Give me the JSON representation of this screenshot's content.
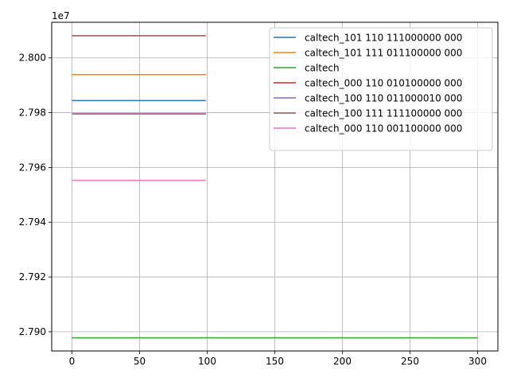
{
  "chart_data": {
    "type": "line",
    "title": "",
    "xlabel": "",
    "ylabel": "",
    "y_offset_label": "1e7",
    "y_scale_factor": 10000000,
    "xlim": [
      -15,
      315
    ],
    "ylim": [
      27893000,
      28013000
    ],
    "x_ticks": [
      0,
      50,
      100,
      150,
      200,
      250,
      300
    ],
    "x_tick_labels": [
      "0",
      "50",
      "100",
      "150",
      "200",
      "250",
      "300"
    ],
    "y_ticks": [
      27900000,
      27920000,
      27940000,
      27960000,
      27980000,
      28000000
    ],
    "y_tick_labels": [
      "2.790",
      "2.792",
      "2.794",
      "2.796",
      "2.798",
      "2.800"
    ],
    "grid": true,
    "legend_position": "top-right",
    "series": [
      {
        "name": "caltech_101 110 111000000 000",
        "color": "#1f77b4",
        "x": [
          0,
          99
        ],
        "y": [
          27984400,
          27984400
        ]
      },
      {
        "name": "caltech_101 111 011100000 000",
        "color": "#ff7f0e",
        "x": [
          0,
          99
        ],
        "y": [
          27993900,
          27993900
        ]
      },
      {
        "name": "caltech",
        "color": "#2ca02c",
        "x": [
          0,
          300
        ],
        "y": [
          27897800,
          27897800
        ]
      },
      {
        "name": "caltech_000 110 010100000 000",
        "color": "#d62728",
        "x": [
          0,
          99
        ],
        "y": [
          27979600,
          27979600
        ]
      },
      {
        "name": "caltech_100 110 011000010 000",
        "color": "#9467bd",
        "x": [
          0,
          99
        ],
        "y": [
          27979500,
          27979500
        ]
      },
      {
        "name": "caltech_100 111 111100000 000",
        "color": "#8c564b",
        "x": [
          0,
          99
        ],
        "y": [
          28008100,
          28008100
        ]
      },
      {
        "name": "caltech_000 110 001100000 000",
        "color": "#e377c2",
        "x": [
          0,
          99
        ],
        "y": [
          27955300,
          27955300
        ]
      }
    ]
  }
}
